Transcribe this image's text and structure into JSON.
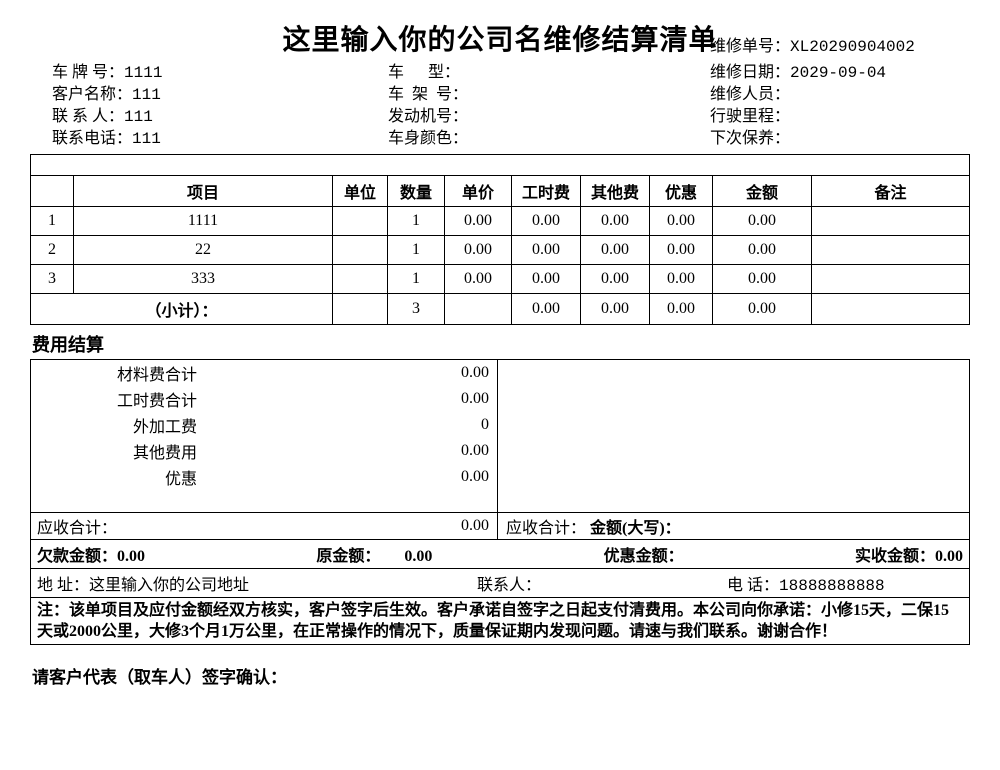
{
  "title": "这里输入你的公司名维修结算清单",
  "header": {
    "order_no_label": "维修单号：",
    "order_no": "XL20290904002",
    "col1": {
      "plate_label": "车 牌 号：",
      "plate": "1111",
      "cust_label": "客户名称：",
      "cust": "111",
      "contact_label": "联 系 人：",
      "contact": "111",
      "phone_label": "联系电话：",
      "phone": "111"
    },
    "col2": {
      "model_label": "车      型：",
      "model": "",
      "vin_label": "车  架  号：",
      "vin": "",
      "engine_label": "发动机号：",
      "engine": "",
      "color_label": "车身颜色：",
      "color": ""
    },
    "col3": {
      "date_label": "维修日期：",
      "date": "2029-09-04",
      "staff_label": "维修人员：",
      "staff": "",
      "mile_label": "行驶里程：",
      "mile": "",
      "next_label": "下次保养：",
      "next": ""
    }
  },
  "table": {
    "headers": {
      "item": "项目",
      "unit": "单位",
      "qty": "数量",
      "price": "单价",
      "labor": "工时费",
      "other": "其他费",
      "disc": "优惠",
      "amt": "金额",
      "remark": "备注"
    },
    "rows": [
      {
        "no": "1",
        "item": "1111",
        "unit": "",
        "qty": "1",
        "price": "0.00",
        "labor": "0.00",
        "other": "0.00",
        "disc": "0.00",
        "amt": "0.00",
        "remark": ""
      },
      {
        "no": "2",
        "item": "22",
        "unit": "",
        "qty": "1",
        "price": "0.00",
        "labor": "0.00",
        "other": "0.00",
        "disc": "0.00",
        "amt": "0.00",
        "remark": ""
      },
      {
        "no": "3",
        "item": "333",
        "unit": "",
        "qty": "1",
        "price": "0.00",
        "labor": "0.00",
        "other": "0.00",
        "disc": "0.00",
        "amt": "0.00",
        "remark": ""
      }
    ],
    "subtotal": {
      "label": "（小计）：",
      "qty": "3",
      "labor": "0.00",
      "other": "0.00",
      "disc": "0.00",
      "amt": "0.00"
    }
  },
  "fee_title": "费用结算",
  "fee": {
    "material_label": "材料费合计",
    "material": "0.00",
    "labor_label": "工时费合计",
    "labor": "0.00",
    "extra_label": "外加工费",
    "extra": "0",
    "other_label": "其他费用",
    "other": "0.00",
    "disc_label": "优惠",
    "disc": "0.00",
    "recv_label": "应收合计：",
    "recv": "0.00",
    "recv_right_label": "应收合计：",
    "recv_right_val": "金额(大写)："
  },
  "bar": {
    "owe_label": "欠款金额：",
    "owe": "0.00",
    "orig_label": "原金额：",
    "orig": "0.00",
    "disc_label": "优惠金额：",
    "disc": "",
    "paid_label": "实收金额：",
    "paid": "0.00"
  },
  "address": {
    "addr_label": "地    址：",
    "addr": "这里输入你的公司地址",
    "contact_label": "联系人：",
    "contact": "",
    "tel_label": "电    话：",
    "tel": "18888888888"
  },
  "note": "注：该单项目及应付金额经双方核实，客户签字后生效。客户承诺自签字之日起支付清费用。本公司向你承诺：小修15天，二保15天或2000公里，大修3个月1万公里，在正常操作的情况下，质量保证期内发现问题。请速与我们联系。谢谢合作！",
  "sign": "请客户代表（取车人）签字确认："
}
